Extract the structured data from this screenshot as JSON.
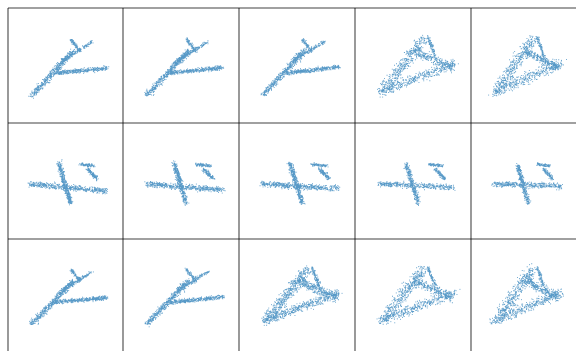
{
  "figure": {
    "rows": 3,
    "cols": 5,
    "point_color": "#1f77b4",
    "grid_line_color": "#000000",
    "background": "#ffffff"
  },
  "panels": [
    {
      "row": 0,
      "col": 0,
      "shape": "jet-swept",
      "orientation": "view-1",
      "density": "dense"
    },
    {
      "row": 0,
      "col": 1,
      "shape": "jet-swept",
      "orientation": "view-2",
      "density": "dense"
    },
    {
      "row": 0,
      "col": 2,
      "shape": "jet-swept",
      "orientation": "view-3",
      "density": "dense"
    },
    {
      "row": 0,
      "col": 3,
      "shape": "delta-wing",
      "orientation": "view-4",
      "density": "sparse"
    },
    {
      "row": 0,
      "col": 4,
      "shape": "delta-wing",
      "orientation": "view-5",
      "density": "sparse"
    },
    {
      "row": 1,
      "col": 0,
      "shape": "straight-wing",
      "orientation": "view-1",
      "density": "dense"
    },
    {
      "row": 1,
      "col": 1,
      "shape": "straight-wing",
      "orientation": "view-2",
      "density": "dense"
    },
    {
      "row": 1,
      "col": 2,
      "shape": "straight-wing",
      "orientation": "view-3",
      "density": "dense"
    },
    {
      "row": 1,
      "col": 3,
      "shape": "straight-wing",
      "orientation": "view-4",
      "density": "sparse"
    },
    {
      "row": 1,
      "col": 4,
      "shape": "straight-wing",
      "orientation": "view-5",
      "density": "sparse"
    },
    {
      "row": 2,
      "col": 0,
      "shape": "jet-swept",
      "orientation": "view-1",
      "density": "dense"
    },
    {
      "row": 2,
      "col": 1,
      "shape": "jet-swept",
      "orientation": "view-2",
      "density": "dense"
    },
    {
      "row": 2,
      "col": 2,
      "shape": "delta-wing",
      "orientation": "view-3",
      "density": "dense"
    },
    {
      "row": 2,
      "col": 3,
      "shape": "delta-wing",
      "orientation": "view-4",
      "density": "sparse"
    },
    {
      "row": 2,
      "col": 4,
      "shape": "delta-wing",
      "orientation": "view-5",
      "density": "sparse"
    }
  ]
}
